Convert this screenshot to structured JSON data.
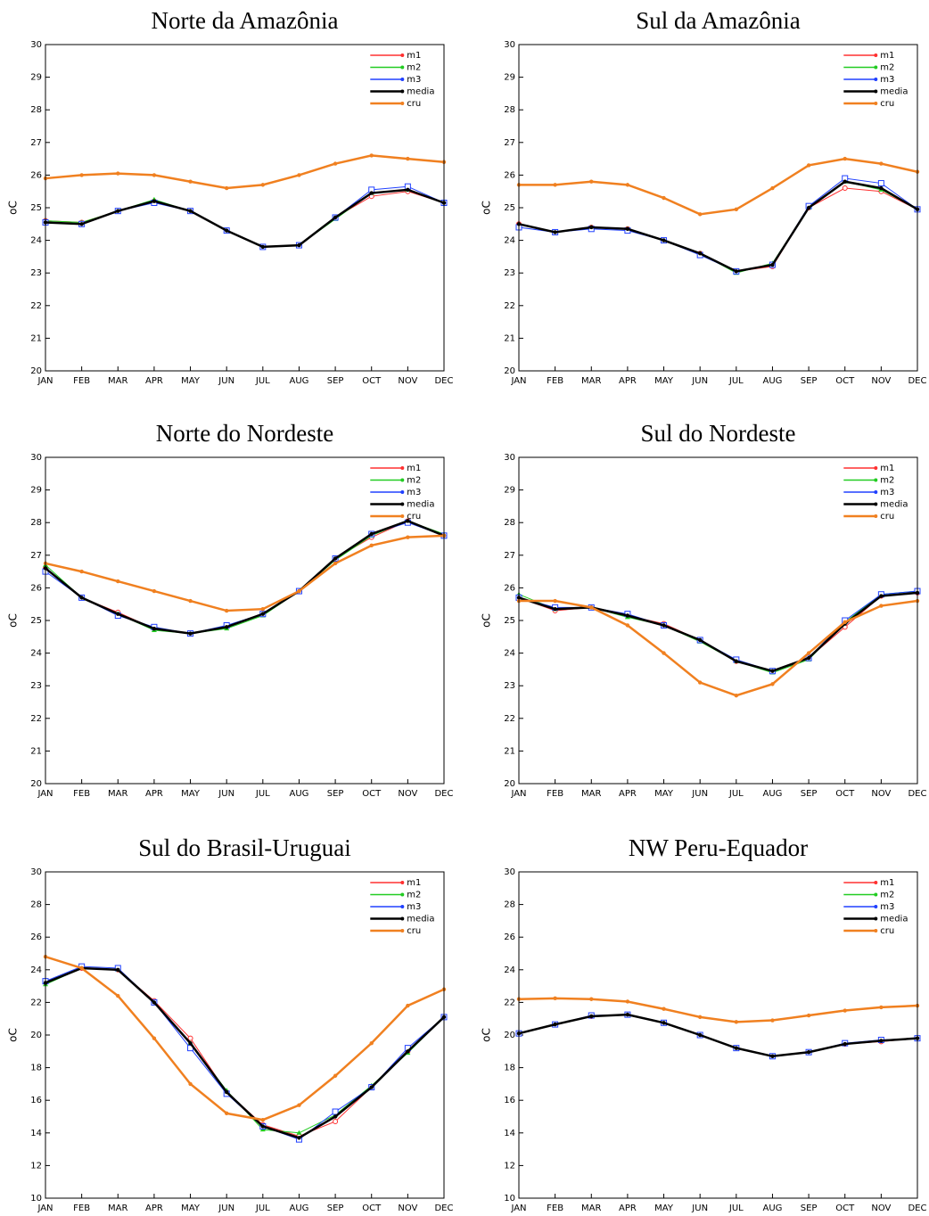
{
  "chart_data": [
    {
      "type": "line",
      "title": "Norte da Amazônia",
      "y_label": "oC",
      "legend": "upper right",
      "categories": [
        "JAN",
        "FEB",
        "MAR",
        "APR",
        "MAY",
        "JUN",
        "JUL",
        "AUG",
        "SEP",
        "OCT",
        "NOV",
        "DEC"
      ],
      "ylim": [
        20,
        30
      ],
      "yticks": [
        20,
        21,
        22,
        23,
        24,
        25,
        26,
        27,
        28,
        29,
        30
      ],
      "series": [
        {
          "name": "m1",
          "color": "#ff3030",
          "marker": "circle",
          "values": [
            24.6,
            24.55,
            24.9,
            25.2,
            24.9,
            24.3,
            23.8,
            23.85,
            24.7,
            25.35,
            25.5,
            25.15
          ]
        },
        {
          "name": "m2",
          "color": "#22cc22",
          "marker": "triangle",
          "values": [
            24.6,
            24.55,
            24.9,
            25.25,
            24.9,
            24.3,
            23.8,
            23.85,
            24.65,
            25.45,
            25.55,
            25.15
          ]
        },
        {
          "name": "m3",
          "color": "#2040ff",
          "marker": "square",
          "values": [
            24.55,
            24.5,
            24.9,
            25.15,
            24.9,
            24.3,
            23.8,
            23.85,
            24.7,
            25.55,
            25.65,
            25.15
          ]
        },
        {
          "name": "media",
          "color": "#000000",
          "marker": "dot",
          "values": [
            24.55,
            24.5,
            24.9,
            25.2,
            24.9,
            24.3,
            23.8,
            23.85,
            24.7,
            25.45,
            25.55,
            25.15
          ]
        },
        {
          "name": "cru",
          "color": "#f08020",
          "marker": "dot",
          "values": [
            25.9,
            26.0,
            26.05,
            26.0,
            25.8,
            25.6,
            25.7,
            26.0,
            26.35,
            26.6,
            26.5,
            26.4
          ]
        }
      ]
    },
    {
      "type": "line",
      "title": "Sul da Amazônia",
      "y_label": "oC",
      "legend": "upper right",
      "categories": [
        "JAN",
        "FEB",
        "MAR",
        "APR",
        "MAY",
        "JUN",
        "JUL",
        "AUG",
        "SEP",
        "OCT",
        "NOV",
        "DEC"
      ],
      "ylim": [
        20,
        30
      ],
      "yticks": [
        20,
        21,
        22,
        23,
        24,
        25,
        26,
        27,
        28,
        29,
        30
      ],
      "series": [
        {
          "name": "m1",
          "color": "#ff3030",
          "marker": "circle",
          "values": [
            24.5,
            24.25,
            24.4,
            24.35,
            24.0,
            23.6,
            23.05,
            23.2,
            25.0,
            25.6,
            25.5,
            24.95
          ]
        },
        {
          "name": "m2",
          "color": "#22cc22",
          "marker": "triangle",
          "values": [
            24.5,
            24.25,
            24.4,
            24.35,
            24.0,
            23.6,
            23.0,
            23.3,
            25.0,
            25.8,
            25.55,
            24.95
          ]
        },
        {
          "name": "m3",
          "color": "#2040ff",
          "marker": "square",
          "values": [
            24.4,
            24.25,
            24.35,
            24.3,
            24.0,
            23.55,
            23.05,
            23.25,
            25.05,
            25.9,
            25.75,
            24.95
          ]
        },
        {
          "name": "media",
          "color": "#000000",
          "marker": "dot",
          "values": [
            24.5,
            24.25,
            24.4,
            24.35,
            24.0,
            23.6,
            23.05,
            23.25,
            25.0,
            25.8,
            25.6,
            24.95
          ]
        },
        {
          "name": "cru",
          "color": "#f08020",
          "marker": "dot",
          "values": [
            25.7,
            25.7,
            25.8,
            25.7,
            25.3,
            24.8,
            24.95,
            25.6,
            26.3,
            26.5,
            26.35,
            26.1
          ]
        }
      ]
    },
    {
      "type": "line",
      "title": "Norte do Nordeste",
      "y_label": "oC",
      "legend": "upper right",
      "categories": [
        "JAN",
        "FEB",
        "MAR",
        "APR",
        "MAY",
        "JUN",
        "JUL",
        "AUG",
        "SEP",
        "OCT",
        "NOV",
        "DEC"
      ],
      "ylim": [
        20,
        30
      ],
      "yticks": [
        20,
        21,
        22,
        23,
        24,
        25,
        26,
        27,
        28,
        29,
        30
      ],
      "series": [
        {
          "name": "m1",
          "color": "#ff3030",
          "marker": "circle",
          "values": [
            26.6,
            25.7,
            25.25,
            24.75,
            24.6,
            24.8,
            25.2,
            25.9,
            26.9,
            27.55,
            28.05,
            27.6
          ]
        },
        {
          "name": "m2",
          "color": "#22cc22",
          "marker": "triangle",
          "values": [
            26.7,
            25.7,
            25.2,
            24.7,
            24.6,
            24.75,
            25.15,
            25.9,
            26.85,
            27.6,
            28.05,
            27.65
          ]
        },
        {
          "name": "m3",
          "color": "#2040ff",
          "marker": "square",
          "values": [
            26.5,
            25.7,
            25.15,
            24.8,
            24.6,
            24.85,
            25.2,
            25.9,
            26.9,
            27.65,
            28.0,
            27.6
          ]
        },
        {
          "name": "media",
          "color": "#000000",
          "marker": "dot",
          "values": [
            26.6,
            25.7,
            25.2,
            24.75,
            24.6,
            24.8,
            25.2,
            25.9,
            26.9,
            27.65,
            28.05,
            27.6
          ]
        },
        {
          "name": "cru",
          "color": "#f08020",
          "marker": "dot",
          "values": [
            26.75,
            26.5,
            26.2,
            25.9,
            25.6,
            25.3,
            25.35,
            25.9,
            26.75,
            27.3,
            27.55,
            27.6
          ]
        }
      ]
    },
    {
      "type": "line",
      "title": "Sul do Nordeste",
      "y_label": "oC",
      "legend": "upper right",
      "categories": [
        "JAN",
        "FEB",
        "MAR",
        "APR",
        "MAY",
        "JUN",
        "JUL",
        "AUG",
        "SEP",
        "OCT",
        "NOV",
        "DEC"
      ],
      "ylim": [
        20,
        30
      ],
      "yticks": [
        20,
        21,
        22,
        23,
        24,
        25,
        26,
        27,
        28,
        29,
        30
      ],
      "series": [
        {
          "name": "m1",
          "color": "#ff3030",
          "marker": "circle",
          "values": [
            25.7,
            25.3,
            25.4,
            25.15,
            24.9,
            24.4,
            23.75,
            23.45,
            23.85,
            24.8,
            25.75,
            25.85
          ]
        },
        {
          "name": "m2",
          "color": "#22cc22",
          "marker": "triangle",
          "values": [
            25.8,
            25.35,
            25.4,
            25.1,
            24.85,
            24.35,
            23.75,
            23.4,
            23.8,
            24.95,
            25.8,
            25.9
          ]
        },
        {
          "name": "m3",
          "color": "#2040ff",
          "marker": "square",
          "values": [
            25.7,
            25.4,
            25.4,
            25.2,
            24.85,
            24.4,
            23.8,
            23.45,
            23.85,
            25.0,
            25.8,
            25.9
          ]
        },
        {
          "name": "media",
          "color": "#000000",
          "marker": "dot",
          "values": [
            25.7,
            25.35,
            25.4,
            25.15,
            24.85,
            24.4,
            23.75,
            23.45,
            23.85,
            24.9,
            25.75,
            25.85
          ]
        },
        {
          "name": "cru",
          "color": "#f08020",
          "marker": "dot",
          "values": [
            25.6,
            25.6,
            25.4,
            24.85,
            24.0,
            23.1,
            22.7,
            23.05,
            24.0,
            24.95,
            25.45,
            25.6
          ]
        }
      ]
    },
    {
      "type": "line",
      "title": "Sul do Brasil-Uruguai",
      "y_label": "oC",
      "legend": "upper right",
      "categories": [
        "JAN",
        "FEB",
        "MAR",
        "APR",
        "MAY",
        "JUN",
        "JUL",
        "AUG",
        "SEP",
        "OCT",
        "NOV",
        "DEC"
      ],
      "ylim": [
        10,
        30
      ],
      "yticks": [
        10,
        12,
        14,
        16,
        18,
        20,
        22,
        24,
        26,
        28,
        30
      ],
      "series": [
        {
          "name": "m1",
          "color": "#ff3030",
          "marker": "circle",
          "values": [
            23.2,
            24.1,
            24.0,
            22.1,
            19.8,
            16.5,
            14.5,
            13.8,
            14.7,
            16.8,
            19.0,
            21.1
          ]
        },
        {
          "name": "m2",
          "color": "#22cc22",
          "marker": "triangle",
          "values": [
            23.1,
            24.1,
            24.0,
            22.0,
            19.5,
            16.6,
            14.2,
            14.0,
            15.1,
            16.9,
            18.9,
            21.1
          ]
        },
        {
          "name": "m3",
          "color": "#2040ff",
          "marker": "square",
          "values": [
            23.3,
            24.2,
            24.1,
            22.0,
            19.2,
            16.4,
            14.4,
            13.6,
            15.3,
            16.8,
            19.2,
            21.1
          ]
        },
        {
          "name": "media",
          "color": "#000000",
          "marker": "dot",
          "values": [
            23.2,
            24.1,
            24.0,
            22.0,
            19.5,
            16.5,
            14.4,
            13.7,
            15.0,
            16.8,
            19.0,
            21.1
          ]
        },
        {
          "name": "cru",
          "color": "#f08020",
          "marker": "dot",
          "values": [
            24.8,
            24.1,
            22.4,
            19.8,
            17.0,
            15.2,
            14.8,
            15.7,
            17.5,
            19.5,
            21.8,
            22.8
          ]
        }
      ]
    },
    {
      "type": "line",
      "title": "NW Peru-Equador",
      "y_label": "oC",
      "legend": "upper right",
      "categories": [
        "JAN",
        "FEB",
        "MAR",
        "APR",
        "MAY",
        "JUN",
        "JUL",
        "AUG",
        "SEP",
        "OCT",
        "NOV",
        "DEC"
      ],
      "ylim": [
        10,
        30
      ],
      "yticks": [
        10,
        12,
        14,
        16,
        18,
        20,
        22,
        24,
        26,
        28,
        30
      ],
      "series": [
        {
          "name": "m1",
          "color": "#ff3030",
          "marker": "circle",
          "values": [
            20.1,
            20.65,
            21.15,
            21.25,
            20.75,
            20.0,
            19.2,
            18.7,
            18.95,
            19.45,
            19.6,
            19.8
          ]
        },
        {
          "name": "m2",
          "color": "#22cc22",
          "marker": "triangle",
          "values": [
            20.1,
            20.65,
            21.15,
            21.25,
            20.75,
            20.0,
            19.2,
            18.7,
            18.95,
            19.45,
            19.65,
            19.8
          ]
        },
        {
          "name": "m3",
          "color": "#2040ff",
          "marker": "square",
          "values": [
            20.1,
            20.65,
            21.2,
            21.25,
            20.75,
            20.0,
            19.2,
            18.7,
            18.95,
            19.5,
            19.7,
            19.8
          ]
        },
        {
          "name": "media",
          "color": "#000000",
          "marker": "dot",
          "values": [
            20.1,
            20.65,
            21.15,
            21.25,
            20.75,
            20.0,
            19.2,
            18.7,
            18.95,
            19.45,
            19.65,
            19.8
          ]
        },
        {
          "name": "cru",
          "color": "#f08020",
          "marker": "dot",
          "values": [
            22.2,
            22.25,
            22.2,
            22.05,
            21.6,
            21.1,
            20.8,
            20.9,
            21.2,
            21.5,
            21.7,
            21.8
          ]
        }
      ]
    }
  ]
}
